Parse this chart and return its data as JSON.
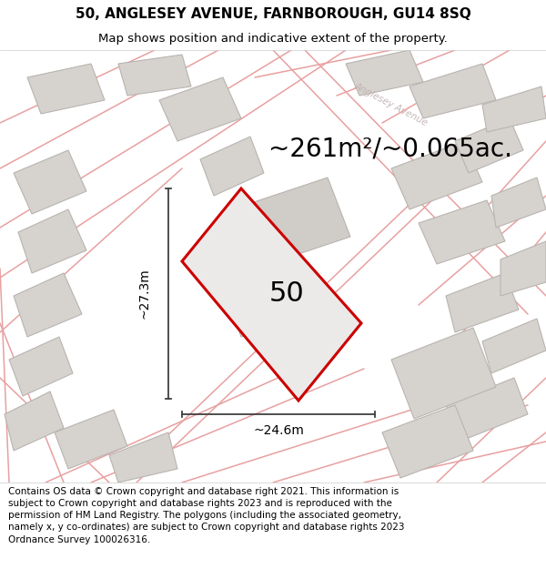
{
  "title_line1": "50, ANGLESEY AVENUE, FARNBOROUGH, GU14 8SQ",
  "title_line2": "Map shows position and indicative extent of the property.",
  "area_text": "~261m²/~0.065ac.",
  "property_number": "50",
  "dim_vertical": "~27.3m",
  "dim_horizontal": "~24.6m",
  "footer_text": "Contains OS data © Crown copyright and database right 2021. This information is subject to Crown copyright and database rights 2023 and is reproduced with the permission of HM Land Registry. The polygons (including the associated geometry, namely x, y co-ordinates) are subject to Crown copyright and database rights 2023 Ordnance Survey 100026316.",
  "map_bg": "#f2f0ee",
  "property_fill": "#eceae8",
  "property_edge": "#cc0000",
  "building_fill": "#d6d2ce",
  "building_edge": "#b8b4b0",
  "road_line_color": "#e8a0a0",
  "street_label": "Anglesey Avenue",
  "title_fontsize": 11,
  "subtitle_fontsize": 9.5,
  "area_fontsize": 20,
  "number_fontsize": 22,
  "dim_fontsize": 10,
  "footer_fontsize": 7.5
}
